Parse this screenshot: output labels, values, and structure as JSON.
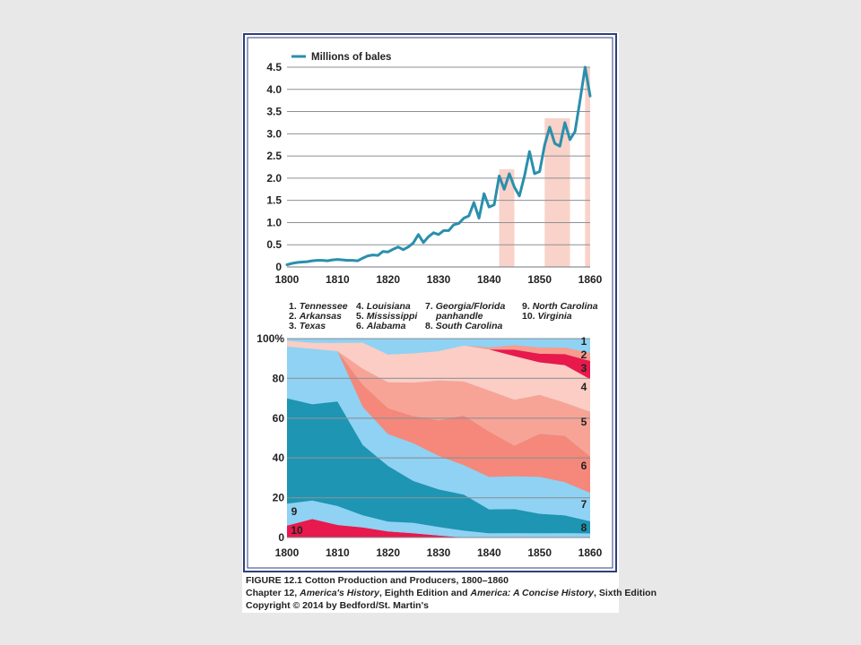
{
  "legend": {
    "line_label": "Millions of bales"
  },
  "chart_data": [
    {
      "type": "line",
      "series": [
        {
          "name": "Millions of bales",
          "x": [
            1800,
            1801,
            1802,
            1803,
            1804,
            1805,
            1806,
            1807,
            1808,
            1809,
            1810,
            1811,
            1812,
            1813,
            1814,
            1815,
            1816,
            1817,
            1818,
            1819,
            1820,
            1821,
            1822,
            1823,
            1824,
            1825,
            1826,
            1827,
            1828,
            1829,
            1830,
            1831,
            1832,
            1833,
            1834,
            1835,
            1836,
            1837,
            1838,
            1839,
            1840,
            1841,
            1842,
            1843,
            1844,
            1845,
            1846,
            1847,
            1848,
            1849,
            1850,
            1851,
            1852,
            1853,
            1854,
            1855,
            1856,
            1857,
            1858,
            1859,
            1860
          ],
          "values": [
            0.05,
            0.08,
            0.1,
            0.11,
            0.12,
            0.14,
            0.15,
            0.15,
            0.14,
            0.16,
            0.17,
            0.16,
            0.15,
            0.15,
            0.14,
            0.2,
            0.25,
            0.27,
            0.26,
            0.35,
            0.34,
            0.4,
            0.45,
            0.39,
            0.45,
            0.54,
            0.73,
            0.55,
            0.68,
            0.77,
            0.73,
            0.82,
            0.82,
            0.95,
            0.98,
            1.1,
            1.15,
            1.45,
            1.1,
            1.65,
            1.35,
            1.4,
            2.05,
            1.75,
            2.1,
            1.8,
            1.6,
            2.05,
            2.6,
            2.1,
            2.15,
            2.75,
            3.15,
            2.78,
            2.72,
            3.25,
            2.87,
            3.05,
            3.75,
            4.5,
            3.85
          ]
        }
      ],
      "highlight_ranges": [
        [
          1842,
          1845
        ],
        [
          1851,
          1856
        ],
        [
          1859,
          1860
        ]
      ],
      "xlim": [
        1800,
        1860
      ],
      "ylim": [
        0,
        4.5
      ],
      "x_ticks": [
        "1800",
        "1810",
        "1820",
        "1830",
        "1840",
        "1850",
        "1860"
      ],
      "y_ticks": [
        "0",
        "0.5",
        "1.0",
        "1.5",
        "2.0",
        "2.5",
        "3.0",
        "3.5",
        "4.0",
        "4.5"
      ],
      "legend_position": "top-left",
      "grid": "horizontal",
      "colors": {
        "line": "#2a8fad",
        "highlight": "#f9d2c9",
        "grid": "#8c9196"
      }
    },
    {
      "type": "area",
      "stacked": true,
      "categories": [
        1800,
        1805,
        1810,
        1815,
        1820,
        1825,
        1830,
        1835,
        1840,
        1845,
        1850,
        1855,
        1860
      ],
      "series": [
        {
          "name": "1. Tennessee",
          "label": "1",
          "values": [
            1,
            2,
            2,
            2,
            8,
            7,
            6,
            3,
            4,
            3,
            4,
            4,
            7
          ],
          "color": "#8fd2f3"
        },
        {
          "name": "2. Arkansas",
          "label": "2",
          "values": [
            0,
            0,
            0,
            0,
            0,
            0,
            0,
            0,
            1,
            2,
            3,
            3,
            4
          ],
          "color": "#f99b8d"
        },
        {
          "name": "3. Texas",
          "label": "3",
          "values": [
            0,
            0,
            0,
            0,
            0,
            0,
            0,
            0,
            0,
            3,
            4,
            5,
            9
          ],
          "color": "#e8194d"
        },
        {
          "name": "4. Louisiana",
          "label": "4",
          "values": [
            3,
            3,
            4,
            13,
            14,
            14,
            14,
            16,
            19,
            20,
            15,
            17,
            16
          ],
          "color": "#fbcdc4"
        },
        {
          "name": "5. Mississippi",
          "label": "5",
          "values": [
            0,
            0,
            0,
            8,
            13,
            16,
            19,
            15,
            19,
            21,
            18,
            15,
            22
          ],
          "color": "#f7a496"
        },
        {
          "name": "6. Alabama",
          "label": "6",
          "values": [
            0,
            0,
            0,
            11,
            13,
            13,
            17,
            22,
            21,
            14,
            20,
            21,
            18
          ],
          "color": "#f5887a"
        },
        {
          "name": "7. Georgia/Florida panhandle",
          "label": "7",
          "values": [
            26,
            27,
            24,
            19,
            16,
            18,
            16,
            13,
            15,
            15,
            17,
            15,
            14
          ],
          "color": "#8fd2f3"
        },
        {
          "name": "8. South Carolina",
          "label": "8",
          "values": [
            53,
            47,
            50,
            35,
            28,
            20,
            18,
            16,
            11,
            11,
            9,
            8,
            6
          ],
          "color": "#1e95b3"
        },
        {
          "name": "9. North Carolina",
          "label": "9",
          "values": [
            11,
            9,
            9,
            6,
            5,
            5,
            4,
            3,
            2,
            2,
            2,
            2,
            2
          ],
          "color": "#8fd2f3"
        },
        {
          "name": "10. Virginia",
          "label": "10",
          "values": [
            6,
            9,
            6,
            5,
            3,
            2,
            1,
            0,
            0,
            0,
            0,
            0,
            0
          ],
          "color": "#e8194d"
        }
      ],
      "xlim": [
        1800,
        1860
      ],
      "ylim": [
        0,
        100
      ],
      "x_ticks": [
        "1800",
        "1810",
        "1820",
        "1830",
        "1840",
        "1850",
        "1860"
      ],
      "y_ticks": [
        "0",
        "20",
        "40",
        "60",
        "80",
        "100%"
      ],
      "legend_entries": [
        [
          "1. Tennessee",
          "2. Arkansas",
          "3. Texas"
        ],
        [
          "4. Louisiana",
          "5. Mississippi",
          "6. Alabama"
        ],
        [
          "7. Georgia/Florida",
          "panhandle",
          "8. South Carolina"
        ],
        [
          "9. North Carolina",
          "10. Virginia"
        ]
      ],
      "legend_position": "top",
      "grid": "horizontal"
    }
  ],
  "caption": {
    "line1": "FIGURE 12.1  Cotton Production and Producers, 1800–1860",
    "line2_a": "Chapter 12, ",
    "line2_b": "America's History",
    "line2_c": ", Eighth Edition and  ",
    "line2_d": "America: A Concise History",
    "line2_e": ", Sixth Edition",
    "line3": "Copyright © 2014 by Bedford/St. Martin's"
  }
}
